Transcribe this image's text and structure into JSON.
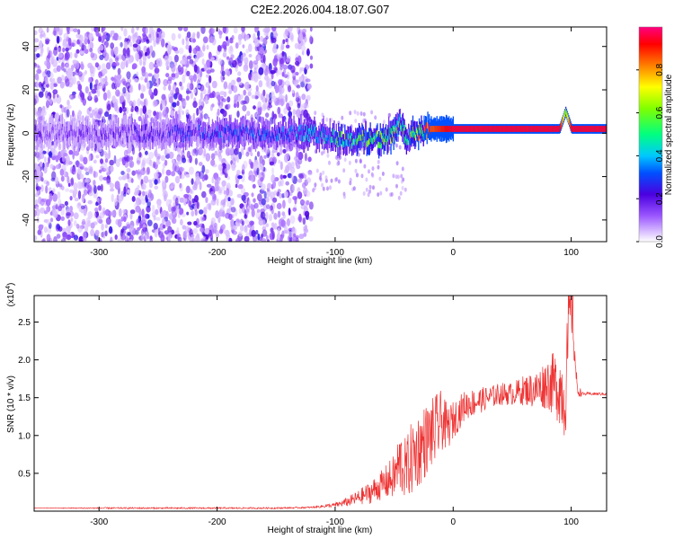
{
  "title": "C2E2.2026.004.18.07.G07",
  "chart_data": [
    {
      "type": "heatmap",
      "xlabel": "Height of straight line (km)",
      "ylabel": "Frequency (Hz)",
      "xlim": [
        -355,
        130
      ],
      "ylim": [
        -50,
        49
      ],
      "xticks": [
        -300,
        -200,
        -100,
        0,
        100
      ],
      "xtick_labels": [
        "-300",
        "-200",
        "-100",
        "0",
        "100"
      ],
      "yticks": [
        -40,
        -20,
        0,
        20,
        40
      ],
      "ytick_labels": [
        "-40",
        "-20",
        "0",
        "20",
        "40"
      ],
      "colorbar": {
        "label": "Normalized spectral amplitude",
        "range": [
          0.0,
          1.0
        ],
        "ticks": [
          0.0,
          0.2,
          0.4,
          0.6,
          0.8
        ],
        "tick_labels": [
          "0.0",
          "0.2",
          "0.4",
          "0.6",
          "0.8"
        ]
      },
      "ridge": {
        "x": [
          -355,
          -300,
          -250,
          -200,
          -150,
          -120,
          -100,
          -90,
          -80,
          -70,
          -60,
          -50,
          -45,
          -40,
          -35,
          -30,
          -20,
          -10,
          0,
          20,
          50,
          90,
          95,
          100,
          130
        ],
        "freq": [
          0,
          0,
          0,
          0,
          0,
          0,
          -2,
          -3,
          -3,
          -2,
          -3,
          0,
          5,
          -3,
          0,
          0,
          2,
          2,
          2,
          2,
          2,
          2,
          10,
          2,
          2
        ],
        "amplitude": [
          0.15,
          0.15,
          0.2,
          0.25,
          0.3,
          0.35,
          0.45,
          0.5,
          0.5,
          0.5,
          0.55,
          0.55,
          0.5,
          0.5,
          0.6,
          0.7,
          0.85,
          0.9,
          0.95,
          0.95,
          0.95,
          0.95,
          0.6,
          0.95,
          0.95
        ]
      },
      "noise_region_x": [
        -355,
        -120
      ]
    },
    {
      "type": "line",
      "xlabel": "Height of straight line (km)",
      "ylabel": "SNR (10 * v/v)",
      "exponent_label": "(x10",
      "exponent_sup": "4",
      "exponent_close": ")",
      "xlim": [
        -355,
        130
      ],
      "ylim": [
        0,
        2.85
      ],
      "xticks": [
        -300,
        -200,
        -100,
        0,
        100
      ],
      "xtick_labels": [
        "-300",
        "-200",
        "-100",
        "0",
        "100"
      ],
      "yticks": [
        0.5,
        1.0,
        1.5,
        2.0,
        2.5
      ],
      "ytick_labels": [
        "0.5",
        "1.0",
        "1.5",
        "2.0",
        "2.5"
      ],
      "color": "#ee3333",
      "series": [
        {
          "name": "SNR",
          "x": [
            -355,
            -300,
            -250,
            -200,
            -150,
            -120,
            -100,
            -90,
            -80,
            -70,
            -60,
            -50,
            -45,
            -40,
            -35,
            -30,
            -25,
            -20,
            -15,
            -10,
            -5,
            0,
            10,
            20,
            30,
            40,
            50,
            60,
            70,
            80,
            90,
            95,
            98,
            100,
            105,
            110,
            120,
            130
          ],
          "values": [
            0.04,
            0.04,
            0.04,
            0.04,
            0.04,
            0.05,
            0.08,
            0.12,
            0.18,
            0.25,
            0.35,
            0.45,
            0.65,
            0.55,
            0.7,
            0.8,
            0.9,
            1.0,
            1.05,
            1.2,
            1.1,
            1.2,
            1.4,
            1.45,
            1.5,
            1.55,
            1.55,
            1.6,
            1.6,
            1.7,
            1.65,
            1.5,
            2.4,
            2.85,
            1.6,
            1.55,
            1.55,
            1.55
          ],
          "spread": [
            0.0,
            0.01,
            0.01,
            0.01,
            0.01,
            0.01,
            0.03,
            0.06,
            0.1,
            0.15,
            0.2,
            0.3,
            0.45,
            0.4,
            0.5,
            0.5,
            0.5,
            0.45,
            0.5,
            0.4,
            0.3,
            0.25,
            0.2,
            0.18,
            0.15,
            0.15,
            0.15,
            0.2,
            0.25,
            0.35,
            0.5,
            0.6,
            0.6,
            0.5,
            0.1,
            0.02,
            0.02,
            0.02
          ]
        }
      ]
    }
  ]
}
